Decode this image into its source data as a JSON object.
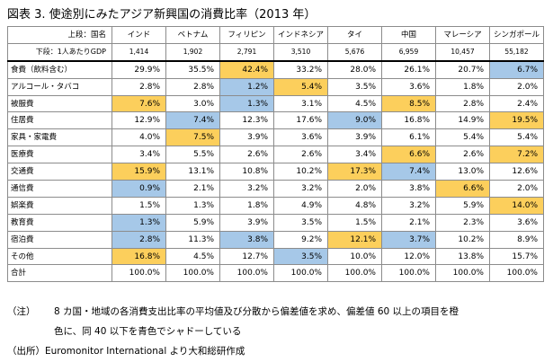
{
  "title": "図表 3.  使途別にみたアジア新興国の消費比率（2013 年）",
  "header": {
    "row_label": "上段：国名",
    "gdp_label": "下段：1人あたりGDP",
    "countries": [
      "インド",
      "ベトナム",
      "フィリピン",
      "インドネシア",
      "タイ",
      "中国",
      "マレーシア",
      "シンガポール"
    ],
    "gdp": [
      "1,414",
      "1,902",
      "2,791",
      "3,510",
      "5,676",
      "6,959",
      "10,457",
      "55,182"
    ]
  },
  "rows": [
    {
      "label": "食費（飲料含む）",
      "values": [
        "29.9%",
        "35.5%",
        "42.4%",
        "33.2%",
        "28.0%",
        "26.1%",
        "20.7%",
        "6.7%"
      ],
      "shade": [
        "",
        "",
        "hi",
        "",
        "",
        "",
        "",
        "lo"
      ]
    },
    {
      "label": "アルコール・タバコ",
      "values": [
        "2.8%",
        "2.8%",
        "1.2%",
        "5.4%",
        "3.5%",
        "3.6%",
        "1.8%",
        "2.0%"
      ],
      "shade": [
        "",
        "",
        "lo",
        "hi",
        "",
        "",
        "",
        ""
      ]
    },
    {
      "label": "被服費",
      "values": [
        "7.6%",
        "3.0%",
        "1.3%",
        "3.1%",
        "4.5%",
        "8.5%",
        "2.8%",
        "2.4%"
      ],
      "shade": [
        "hi",
        "",
        "lo",
        "",
        "",
        "hi",
        "",
        ""
      ]
    },
    {
      "label": "住居費",
      "values": [
        "12.9%",
        "7.4%",
        "12.3%",
        "17.6%",
        "9.0%",
        "16.8%",
        "14.9%",
        "19.5%"
      ],
      "shade": [
        "",
        "lo",
        "",
        "",
        "lo",
        "",
        "",
        "hi"
      ]
    },
    {
      "label": "家具・家電費",
      "values": [
        "4.0%",
        "7.5%",
        "3.9%",
        "3.6%",
        "3.9%",
        "6.1%",
        "5.4%",
        "5.4%"
      ],
      "shade": [
        "",
        "hi",
        "",
        "",
        "",
        "",
        "",
        ""
      ]
    },
    {
      "label": "医療費",
      "values": [
        "3.4%",
        "5.5%",
        "2.6%",
        "2.6%",
        "3.4%",
        "6.6%",
        "2.6%",
        "7.2%"
      ],
      "shade": [
        "",
        "",
        "",
        "",
        "",
        "hi",
        "",
        "hi"
      ]
    },
    {
      "label": "交通費",
      "values": [
        "15.9%",
        "13.1%",
        "10.8%",
        "10.2%",
        "17.3%",
        "7.4%",
        "13.0%",
        "12.6%"
      ],
      "shade": [
        "hi",
        "",
        "",
        "",
        "hi",
        "lo",
        "",
        ""
      ]
    },
    {
      "label": "通信費",
      "values": [
        "0.9%",
        "2.1%",
        "3.2%",
        "3.2%",
        "2.0%",
        "3.8%",
        "6.6%",
        "2.0%"
      ],
      "shade": [
        "lo",
        "",
        "",
        "",
        "",
        "",
        "hi",
        ""
      ]
    },
    {
      "label": "娯楽費",
      "values": [
        "1.5%",
        "1.3%",
        "1.8%",
        "4.9%",
        "4.8%",
        "3.2%",
        "5.9%",
        "14.0%"
      ],
      "shade": [
        "",
        "",
        "",
        "",
        "",
        "",
        "",
        "hi"
      ]
    },
    {
      "label": "教育費",
      "values": [
        "1.3%",
        "5.9%",
        "3.9%",
        "3.5%",
        "1.5%",
        "2.1%",
        "2.3%",
        "3.6%"
      ],
      "shade": [
        "lo",
        "",
        "",
        "",
        "",
        "",
        "",
        ""
      ]
    },
    {
      "label": "宿泊費",
      "values": [
        "2.8%",
        "11.3%",
        "3.8%",
        "9.2%",
        "12.1%",
        "3.7%",
        "10.2%",
        "8.9%"
      ],
      "shade": [
        "lo",
        "",
        "lo",
        "",
        "hi",
        "lo",
        "",
        ""
      ]
    },
    {
      "label": "その他",
      "values": [
        "16.8%",
        "4.5%",
        "12.7%",
        "3.5%",
        "10.0%",
        "12.0%",
        "13.8%",
        "15.7%"
      ],
      "shade": [
        "hi",
        "",
        "",
        "lo",
        "",
        "",
        "",
        ""
      ]
    },
    {
      "label": "合計",
      "values": [
        "100.0%",
        "100.0%",
        "100.0%",
        "100.0%",
        "100.0%",
        "100.0%",
        "100.0%",
        "100.0%"
      ],
      "shade": [
        "",
        "",
        "",
        "",
        "",
        "",
        "",
        ""
      ]
    }
  ],
  "note_label": "（注）",
  "note_line1": "8 カ国・地域の各消費支出比率の平均値及び分散から偏差値を求め、偏差値 60 以上の項目を橙",
  "note_line2": "色に、同 40 以下を青色でシャドーしている",
  "source": "（出所）Euromonitor  International より大和総研作成",
  "colors": {
    "hi": "#fccf5c",
    "lo": "#a6c8e8"
  }
}
